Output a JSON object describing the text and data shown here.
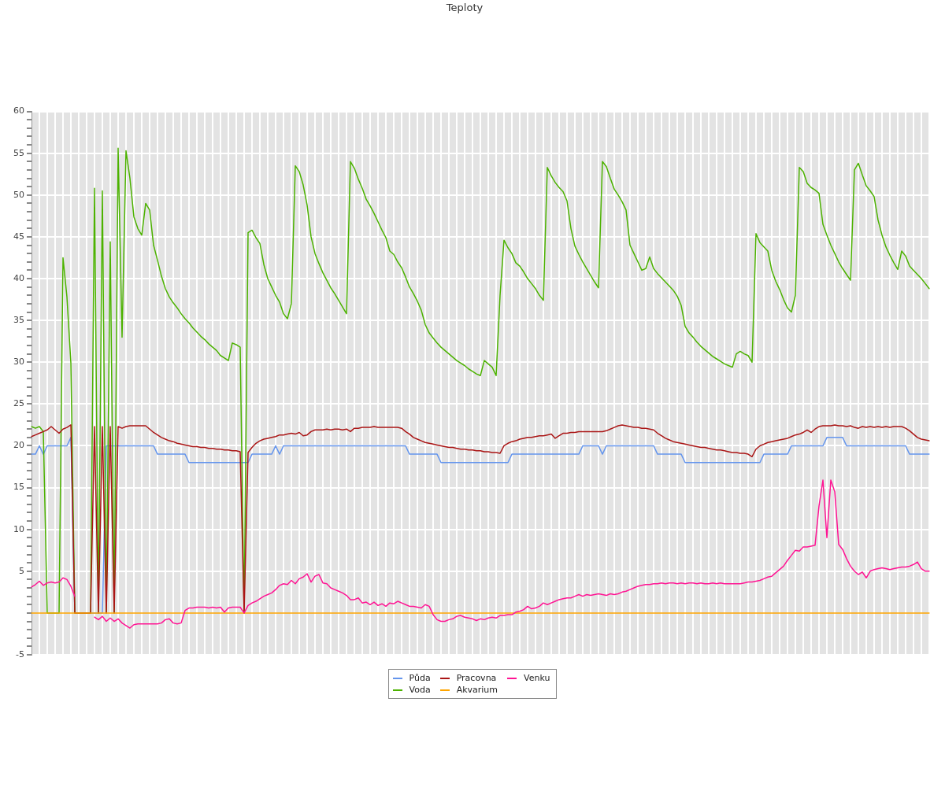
{
  "chart_data": {
    "type": "line",
    "title": "Teploty",
    "categories": [
      null,
      null,
      null,
      null,
      null,
      null,
      null,
      null,
      null,
      null,
      null,
      null,
      null,
      null,
      null,
      null,
      null,
      null,
      null,
      null,
      null,
      null,
      null,
      null,
      null,
      null,
      null,
      null,
      null,
      null,
      null,
      null,
      null,
      null,
      null,
      null,
      null,
      null,
      null,
      null,
      null,
      null,
      null,
      null,
      null,
      null,
      null,
      null,
      null,
      null,
      null,
      null,
      null,
      null,
      null,
      null,
      null,
      null,
      null,
      null,
      null,
      null,
      null,
      null,
      null,
      null,
      null,
      null,
      null,
      null,
      null,
      null,
      null,
      null,
      null,
      null,
      null,
      null,
      null,
      null,
      null,
      null,
      null,
      null,
      null,
      null,
      null,
      null,
      null,
      null,
      null,
      null,
      null,
      null,
      null,
      null,
      null,
      null,
      null,
      null,
      null,
      null,
      null,
      null,
      null,
      null,
      null,
      null,
      null,
      null,
      null,
      null,
      null,
      null,
      null,
      null,
      null,
      null,
      null,
      null,
      null,
      null,
      null,
      null,
      null,
      null,
      null,
      null,
      null,
      null,
      null,
      null,
      null,
      null,
      null,
      null,
      null,
      null,
      null,
      null,
      null,
      null,
      null,
      null,
      null,
      null,
      null,
      null,
      null,
      null,
      null,
      null,
      null,
      null,
      null,
      null,
      null,
      null,
      null,
      null,
      null,
      null,
      null,
      null,
      null,
      null,
      null,
      null,
      null,
      null,
      null,
      null,
      null,
      null,
      null,
      null,
      null,
      null,
      null,
      null,
      null,
      null,
      null,
      null,
      null,
      null,
      null,
      null,
      null,
      null,
      null,
      null,
      null,
      null,
      null,
      null,
      null,
      null,
      null,
      null,
      null,
      null,
      null,
      null,
      null,
      null,
      null,
      null,
      null,
      null,
      null,
      null,
      null,
      null,
      null,
      null,
      null,
      null,
      null,
      null,
      null,
      null,
      null,
      null,
      null,
      null,
      null,
      null,
      null
    ],
    "series": [
      {
        "name": "Půda",
        "color": "#6495ed",
        "values": [
          19,
          19,
          20,
          19,
          20,
          20,
          20,
          20,
          20,
          20,
          21,
          0,
          0,
          0,
          0,
          0,
          0,
          0,
          0,
          20,
          20,
          20,
          20,
          20,
          20,
          20,
          20,
          20,
          20,
          20,
          20,
          20,
          19,
          19,
          19,
          19,
          19,
          19,
          19,
          19,
          18,
          18,
          18,
          18,
          18,
          18,
          18,
          18,
          18,
          18,
          18,
          18,
          18,
          18,
          18,
          18,
          19,
          19,
          19,
          19,
          19,
          19,
          20,
          19,
          20,
          20,
          20,
          20,
          20,
          20,
          20,
          20,
          20,
          20,
          20,
          20,
          20,
          20,
          20,
          20,
          20,
          20,
          20,
          20,
          20,
          20,
          20,
          20,
          20,
          20,
          20,
          20,
          20,
          20,
          20,
          20,
          19,
          19,
          19,
          19,
          19,
          19,
          19,
          19,
          18,
          18,
          18,
          18,
          18,
          18,
          18,
          18,
          18,
          18,
          18,
          18,
          18,
          18,
          18,
          18,
          18,
          18,
          19,
          19,
          19,
          19,
          19,
          19,
          19,
          19,
          19,
          19,
          19,
          19,
          19,
          19,
          19,
          19,
          19,
          19,
          20,
          20,
          20,
          20,
          20,
          19,
          20,
          20,
          20,
          20,
          20,
          20,
          20,
          20,
          20,
          20,
          20,
          20,
          20,
          19,
          19,
          19,
          19,
          19,
          19,
          19,
          18,
          18,
          18,
          18,
          18,
          18,
          18,
          18,
          18,
          18,
          18,
          18,
          18,
          18,
          18,
          18,
          18,
          18,
          18,
          18,
          19,
          19,
          19,
          19,
          19,
          19,
          19,
          20,
          20,
          20,
          20,
          20,
          20,
          20,
          20,
          20,
          21,
          21,
          21,
          21,
          21,
          20,
          20,
          20,
          20,
          20,
          20,
          20,
          20,
          20,
          20,
          20,
          20,
          20,
          20,
          20,
          20,
          19,
          19,
          19,
          19,
          19,
          19
        ]
      },
      {
        "name": "Voda",
        "color": "#4cb200",
        "values": [
          22.3,
          22.1,
          22.3,
          21.7,
          0,
          0,
          0,
          0,
          42.5,
          37.8,
          29.9,
          0,
          0,
          0,
          0,
          0,
          50.8,
          0,
          50.5,
          0,
          44.4,
          0,
          55.6,
          33.0,
          55.3,
          52.0,
          47.4,
          46.0,
          45.2,
          49.0,
          48.2,
          44.0,
          42.2,
          40.3,
          38.8,
          37.8,
          37.1,
          36.5,
          35.8,
          35.2,
          34.7,
          34.1,
          33.6,
          33.1,
          32.7,
          32.2,
          31.8,
          31.4,
          30.8,
          30.5,
          30.2,
          32.3,
          32.1,
          31.8,
          0,
          45.5,
          45.8,
          44.9,
          44.2,
          41.7,
          40.0,
          39.0,
          38.0,
          37.2,
          35.8,
          35.2,
          37.0,
          53.5,
          52.8,
          51.2,
          48.8,
          45.0,
          43.0,
          41.8,
          40.7,
          39.8,
          38.9,
          38.2,
          37.4,
          36.6,
          35.8,
          54.0,
          53.2,
          51.9,
          50.8,
          49.5,
          48.7,
          47.8,
          46.8,
          45.8,
          44.9,
          43.3,
          42.9,
          42.0,
          41.3,
          40.2,
          39.0,
          38.2,
          37.3,
          36.2,
          34.5,
          33.5,
          32.9,
          32.3,
          31.8,
          31.4,
          31.0,
          30.6,
          30.2,
          29.9,
          29.6,
          29.2,
          28.9,
          28.6,
          28.4,
          30.2,
          29.8,
          29.4,
          28.4,
          38.0,
          44.6,
          43.7,
          43.0,
          41.9,
          41.5,
          40.8,
          40.0,
          39.4,
          38.8,
          38.0,
          37.4,
          53.3,
          52.3,
          51.5,
          50.9,
          50.4,
          49.3,
          46.0,
          43.9,
          42.9,
          42.0,
          41.2,
          40.4,
          39.6,
          38.9,
          54.0,
          53.4,
          52.0,
          50.7,
          50.0,
          49.2,
          48.2,
          44.0,
          43.0,
          42.0,
          41.0,
          41.2,
          42.6,
          41.2,
          40.6,
          40.1,
          39.6,
          39.1,
          38.6,
          37.9,
          36.8,
          34.3,
          33.5,
          33.0,
          32.4,
          31.9,
          31.5,
          31.1,
          30.7,
          30.4,
          30.1,
          29.8,
          29.6,
          29.4,
          31.0,
          31.3,
          31.0,
          30.8,
          30.0,
          45.4,
          44.3,
          43.8,
          43.3,
          41.0,
          39.7,
          38.7,
          37.5,
          36.5,
          36.0,
          38.0,
          53.3,
          52.8,
          51.4,
          50.9,
          50.6,
          50.2,
          46.5,
          45.2,
          44.0,
          43.0,
          42.0,
          41.2,
          40.5,
          39.8,
          53.0,
          53.8,
          52.4,
          51.1,
          50.5,
          49.8,
          47.0,
          45.2,
          43.8,
          42.8,
          41.9,
          41.1,
          43.3,
          42.7,
          41.5,
          41.0,
          40.5,
          40.0,
          39.4,
          38.8
        ]
      },
      {
        "name": "Pracovna",
        "color": "#aa1515",
        "values": [
          21.1,
          21.3,
          21.5,
          21.7,
          21.9,
          22.3,
          21.9,
          21.5,
          22.0,
          22.2,
          22.5,
          0,
          0,
          0,
          0,
          0,
          22.3,
          0,
          22.3,
          0,
          22.3,
          0,
          22.3,
          22.1,
          22.3,
          22.4,
          22.4,
          22.4,
          22.4,
          22.4,
          22.0,
          21.6,
          21.3,
          21.0,
          20.8,
          20.6,
          20.5,
          20.3,
          20.2,
          20.1,
          20.0,
          19.9,
          19.9,
          19.8,
          19.8,
          19.7,
          19.7,
          19.6,
          19.6,
          19.5,
          19.5,
          19.4,
          19.4,
          19.3,
          0,
          19.2,
          19.8,
          20.3,
          20.6,
          20.8,
          20.9,
          21.0,
          21.1,
          21.3,
          21.3,
          21.4,
          21.5,
          21.4,
          21.6,
          21.2,
          21.3,
          21.7,
          21.9,
          21.9,
          21.9,
          22.0,
          21.9,
          22.0,
          22.0,
          21.9,
          22.0,
          21.7,
          22.1,
          22.1,
          22.2,
          22.2,
          22.2,
          22.3,
          22.2,
          22.2,
          22.2,
          22.2,
          22.2,
          22.2,
          22.1,
          21.7,
          21.4,
          21.0,
          20.8,
          20.6,
          20.4,
          20.3,
          20.2,
          20.1,
          20.0,
          19.9,
          19.8,
          19.8,
          19.7,
          19.6,
          19.6,
          19.5,
          19.5,
          19.4,
          19.4,
          19.3,
          19.3,
          19.2,
          19.2,
          19.1,
          20.0,
          20.3,
          20.5,
          20.6,
          20.8,
          20.9,
          21.0,
          21.0,
          21.1,
          21.2,
          21.2,
          21.3,
          21.4,
          20.9,
          21.2,
          21.5,
          21.5,
          21.6,
          21.6,
          21.7,
          21.7,
          21.7,
          21.7,
          21.7,
          21.7,
          21.7,
          21.8,
          22.0,
          22.2,
          22.4,
          22.5,
          22.4,
          22.3,
          22.2,
          22.2,
          22.1,
          22.1,
          22.0,
          21.9,
          21.5,
          21.2,
          20.9,
          20.7,
          20.5,
          20.4,
          20.3,
          20.2,
          20.1,
          20.0,
          19.9,
          19.8,
          19.8,
          19.7,
          19.6,
          19.5,
          19.5,
          19.4,
          19.3,
          19.2,
          19.2,
          19.1,
          19.1,
          19.0,
          18.7,
          19.6,
          20.0,
          20.2,
          20.4,
          20.5,
          20.6,
          20.7,
          20.8,
          20.9,
          21.1,
          21.3,
          21.4,
          21.6,
          21.9,
          21.6,
          22.0,
          22.3,
          22.4,
          22.4,
          22.4,
          22.5,
          22.4,
          22.4,
          22.3,
          22.4,
          22.2,
          22.1,
          22.3,
          22.2,
          22.3,
          22.2,
          22.3,
          22.2,
          22.3,
          22.2,
          22.3,
          22.3,
          22.3,
          22.1,
          21.8,
          21.4,
          21.0,
          20.8,
          20.7,
          20.6
        ]
      },
      {
        "name": "Akvarium",
        "color": "#ffa500",
        "values": [
          0,
          0,
          0,
          0,
          0,
          0,
          0,
          0,
          0,
          0,
          0,
          0,
          0,
          0,
          0,
          0,
          0,
          0,
          0,
          0,
          0,
          0,
          0,
          0,
          0,
          0,
          0,
          0,
          0,
          0,
          0,
          0,
          0,
          0,
          0,
          0,
          0,
          0,
          0,
          0,
          0,
          0,
          0,
          0,
          0,
          0,
          0,
          0,
          0,
          0,
          0,
          0,
          0,
          0,
          0,
          0,
          0,
          0,
          0,
          0,
          0,
          0,
          0,
          0,
          0,
          0,
          0,
          0,
          0,
          0,
          0,
          0,
          0,
          0,
          0,
          0,
          0,
          0,
          0,
          0,
          0,
          0,
          0,
          0,
          0,
          0,
          0,
          0,
          0,
          0,
          0,
          0,
          0,
          0,
          0,
          0,
          0,
          0,
          0,
          0,
          0,
          0,
          0,
          0,
          0,
          0,
          0,
          0,
          0,
          0,
          0,
          0,
          0,
          0,
          0,
          0,
          0,
          0,
          0,
          0,
          0,
          0,
          0,
          0,
          0,
          0,
          0,
          0,
          0,
          0,
          0,
          0,
          0,
          0,
          0,
          0,
          0,
          0,
          0,
          0,
          0,
          0,
          0,
          0,
          0,
          0,
          0,
          0,
          0,
          0,
          0,
          0,
          0,
          0,
          0,
          0,
          0,
          0,
          0,
          0,
          0,
          0,
          0,
          0,
          0,
          0,
          0,
          0,
          0,
          0,
          0,
          0,
          0,
          0,
          0,
          0,
          0,
          0,
          0,
          0,
          0,
          0,
          0,
          0,
          0,
          0,
          0,
          0,
          0,
          0,
          0,
          0,
          0,
          0,
          0,
          0,
          0,
          0,
          0,
          0,
          0,
          0,
          0,
          0,
          0,
          0,
          0,
          0,
          0,
          0,
          0,
          0,
          0,
          0,
          0,
          0,
          0,
          0,
          0,
          0,
          0,
          0,
          0,
          0,
          0,
          0,
          0,
          0,
          0
        ]
      },
      {
        "name": "Venku",
        "color": "#ff1493",
        "values": [
          3.1,
          3.4,
          3.8,
          3.3,
          3.6,
          3.7,
          3.6,
          3.7,
          4.2,
          4.0,
          3.2,
          2.0,
          null,
          null,
          null,
          null,
          -0.5,
          -0.8,
          -0.4,
          -1.0,
          -0.6,
          -1.0,
          -0.7,
          -1.2,
          -1.5,
          -1.8,
          -1.4,
          -1.3,
          -1.3,
          -1.3,
          -1.3,
          -1.3,
          -1.3,
          -1.2,
          -0.8,
          -0.7,
          -1.2,
          -1.3,
          -1.2,
          0.3,
          0.6,
          0.6,
          0.7,
          0.7,
          0.7,
          0.6,
          0.7,
          0.6,
          0.7,
          0.1,
          0.6,
          0.7,
          0.7,
          0.7,
          0,
          0.9,
          1.2,
          1.4,
          1.7,
          2.0,
          2.2,
          2.4,
          2.8,
          3.3,
          3.5,
          3.4,
          3.9,
          3.5,
          4.1,
          4.3,
          4.7,
          3.7,
          4.4,
          4.6,
          3.6,
          3.5,
          3.0,
          2.8,
          2.6,
          2.4,
          2.1,
          1.6,
          1.6,
          1.8,
          1.2,
          1.3,
          1.0,
          1.3,
          0.9,
          1.1,
          0.8,
          1.2,
          1.1,
          1.4,
          1.2,
          1.0,
          0.8,
          0.8,
          0.7,
          0.6,
          1.0,
          0.8,
          -0.2,
          -0.8,
          -1.0,
          -1.0,
          -0.8,
          -0.7,
          -0.4,
          -0.3,
          -0.5,
          -0.6,
          -0.7,
          -0.9,
          -0.7,
          -0.8,
          -0.6,
          -0.5,
          -0.6,
          -0.3,
          -0.3,
          -0.2,
          -0.2,
          0.1,
          0.2,
          0.4,
          0.8,
          0.5,
          0.6,
          0.8,
          1.2,
          1.0,
          1.2,
          1.4,
          1.6,
          1.7,
          1.8,
          1.8,
          2.0,
          2.2,
          2.0,
          2.2,
          2.1,
          2.2,
          2.3,
          2.2,
          2.1,
          2.3,
          2.2,
          2.3,
          2.5,
          2.6,
          2.8,
          3.0,
          3.2,
          3.3,
          3.4,
          3.4,
          3.5,
          3.5,
          3.6,
          3.5,
          3.6,
          3.6,
          3.5,
          3.6,
          3.5,
          3.6,
          3.6,
          3.5,
          3.6,
          3.5,
          3.5,
          3.6,
          3.5,
          3.6,
          3.5,
          3.5,
          3.5,
          3.5,
          3.5,
          3.6,
          3.7,
          3.7,
          3.8,
          3.9,
          4.1,
          4.3,
          4.4,
          4.8,
          5.2,
          5.6,
          6.3,
          6.9,
          7.5,
          7.4,
          7.9,
          7.9,
          8.0,
          8.1,
          12.8,
          15.9,
          9.0,
          15.9,
          14.5,
          8.2,
          7.6,
          6.5,
          5.6,
          5.0,
          4.6,
          4.9,
          4.2,
          5.0,
          5.2,
          5.3,
          5.4,
          5.3,
          5.2,
          5.3,
          5.4,
          5.5,
          5.5,
          5.6,
          5.8,
          6.1,
          5.3,
          5.0,
          5.0
        ]
      }
    ],
    "ylim": [
      -5,
      60
    ],
    "yticks": [
      -5,
      {
        "value": -4,
        "label": null
      },
      {
        "value": -3,
        "label": null
      },
      {
        "value": -2,
        "label": null
      },
      {
        "value": -1,
        "label": null
      },
      {
        "value": 0,
        "label": null
      },
      {
        "value": 1,
        "label": null
      },
      {
        "value": 2,
        "label": null
      },
      {
        "value": 3,
        "label": null
      },
      {
        "value": 4,
        "label": null
      },
      5,
      {
        "value": 6,
        "label": null
      },
      {
        "value": 7,
        "label": null
      },
      {
        "value": 8,
        "label": null
      },
      {
        "value": 9,
        "label": null
      },
      10,
      {
        "value": 11,
        "label": null
      },
      {
        "value": 12,
        "label": null
      },
      {
        "value": 13,
        "label": null
      },
      {
        "value": 14,
        "label": null
      },
      15,
      {
        "value": 16,
        "label": null
      },
      {
        "value": 17,
        "label": null
      },
      {
        "value": 18,
        "label": null
      },
      {
        "value": 19,
        "label": null
      },
      20,
      {
        "value": 21,
        "label": null
      },
      {
        "value": 22,
        "label": null
      },
      {
        "value": 23,
        "label": null
      },
      {
        "value": 24,
        "label": null
      },
      25,
      {
        "value": 26,
        "label": null
      },
      {
        "value": 27,
        "label": null
      },
      {
        "value": 28,
        "label": null
      },
      {
        "value": 29,
        "label": null
      },
      30,
      {
        "value": 31,
        "label": null
      },
      {
        "value": 32,
        "label": null
      },
      {
        "value": 33,
        "label": null
      },
      {
        "value": 34,
        "label": null
      },
      35,
      {
        "value": 36,
        "label": null
      },
      {
        "value": 37,
        "label": null
      },
      {
        "value": 38,
        "label": null
      },
      {
        "value": 39,
        "label": null
      },
      40,
      {
        "value": 41,
        "label": null
      },
      {
        "value": 42,
        "label": null
      },
      {
        "value": 43,
        "label": null
      },
      {
        "value": 44,
        "label": null
      },
      45,
      {
        "value": 46,
        "label": null
      },
      {
        "value": 47,
        "label": null
      },
      {
        "value": 48,
        "label": null
      },
      {
        "value": 49,
        "label": null
      },
      50,
      {
        "value": 51,
        "label": null
      },
      {
        "value": 52,
        "label": null
      },
      {
        "value": 53,
        "label": null
      },
      {
        "value": 54,
        "label": null
      },
      55,
      {
        "value": 56,
        "label": null
      },
      {
        "value": 57,
        "label": null
      },
      {
        "value": 58,
        "label": null
      },
      {
        "value": 59,
        "label": null
      },
      60
    ],
    "grid": true,
    "legend": "bottom"
  }
}
